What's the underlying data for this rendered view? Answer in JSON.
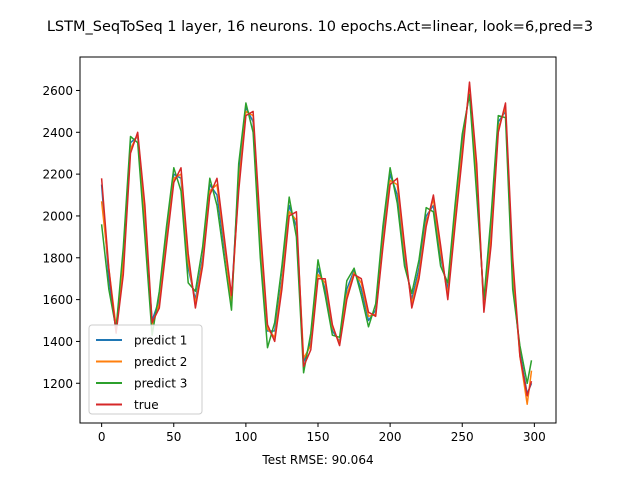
{
  "chart_data": {
    "type": "line",
    "title": "LSTM_SeqToSeq 1 layer, 16 neurons. 10 epochs.Act=linear, look=6,pred=3",
    "xlabel": "Test RMSE: 90.064",
    "ylabel": "",
    "xlim": [
      -15,
      315
    ],
    "ylim": [
      1010,
      2760
    ],
    "xticks": [
      0,
      50,
      100,
      150,
      200,
      250,
      300
    ],
    "yticks": [
      1200,
      1400,
      1600,
      1800,
      2000,
      2200,
      2400,
      2600
    ],
    "grid": false,
    "legend_position": "lower left",
    "series": [
      {
        "name": "predict 1",
        "color": "#1f77b4",
        "x": [
          0,
          5,
          10,
          15,
          20,
          25,
          30,
          35,
          40,
          45,
          50,
          55,
          60,
          65,
          70,
          75,
          80,
          85,
          90,
          95,
          100,
          105,
          110,
          115,
          120,
          125,
          130,
          135,
          140,
          145,
          150,
          155,
          160,
          165,
          170,
          175,
          180,
          185,
          190,
          195,
          200,
          205,
          210,
          215,
          220,
          225,
          230,
          235,
          240,
          245,
          250,
          255,
          260,
          265,
          270,
          275,
          280,
          285,
          290,
          295,
          298
        ],
        "y": [
          2150,
          1700,
          1450,
          1800,
          2350,
          2380,
          1950,
          1500,
          1600,
          1900,
          2200,
          2180,
          1750,
          1600,
          1800,
          2150,
          2100,
          1850,
          1600,
          2200,
          2520,
          2450,
          1850,
          1450,
          1450,
          1700,
          2050,
          1950,
          1300,
          1400,
          1750,
          1650,
          1450,
          1400,
          1650,
          1740,
          1650,
          1500,
          1550,
          1900,
          2200,
          2100,
          1800,
          1600,
          1750,
          2000,
          2050,
          1800,
          1650,
          2000,
          2350,
          2600,
          2150,
          1580,
          1950,
          2450,
          2500,
          1700,
          1350,
          1150,
          1200
        ]
      },
      {
        "name": "predict 2",
        "color": "#ff7f0e",
        "x": [
          0,
          5,
          10,
          15,
          20,
          25,
          30,
          35,
          40,
          45,
          50,
          55,
          60,
          65,
          70,
          75,
          80,
          85,
          90,
          95,
          100,
          105,
          110,
          115,
          120,
          125,
          130,
          135,
          140,
          145,
          150,
          155,
          160,
          165,
          170,
          175,
          180,
          185,
          190,
          195,
          200,
          205,
          210,
          215,
          220,
          225,
          230,
          235,
          240,
          245,
          250,
          255,
          260,
          265,
          270,
          275,
          280,
          285,
          290,
          295,
          298
        ],
        "y": [
          2070,
          1750,
          1470,
          1780,
          2320,
          2390,
          2000,
          1480,
          1580,
          1880,
          2180,
          2200,
          1780,
          1580,
          1780,
          2120,
          2150,
          1880,
          1580,
          2150,
          2500,
          2480,
          1900,
          1460,
          1420,
          1680,
          2020,
          1980,
          1320,
          1380,
          1720,
          1680,
          1470,
          1390,
          1620,
          1730,
          1680,
          1520,
          1530,
          1870,
          2170,
          2150,
          1830,
          1580,
          1720,
          1970,
          2080,
          1830,
          1620,
          1980,
          2310,
          2620,
          2200,
          1560,
          1900,
          2420,
          2520,
          1750,
          1330,
          1100,
          1260
        ]
      },
      {
        "name": "predict 3",
        "color": "#2ca02c",
        "x": [
          0,
          5,
          10,
          15,
          20,
          25,
          30,
          35,
          40,
          45,
          50,
          55,
          60,
          65,
          70,
          75,
          80,
          85,
          90,
          95,
          100,
          105,
          110,
          115,
          120,
          125,
          130,
          135,
          140,
          145,
          150,
          155,
          160,
          165,
          170,
          175,
          180,
          185,
          190,
          195,
          200,
          205,
          210,
          215,
          220,
          225,
          230,
          235,
          240,
          245,
          250,
          255,
          260,
          265,
          270,
          275,
          280,
          285,
          290,
          295,
          298
        ],
        "y": [
          1960,
          1650,
          1460,
          1850,
          2380,
          2350,
          1900,
          1430,
          1640,
          1950,
          2230,
          2120,
          1680,
          1640,
          1850,
          2180,
          2050,
          1800,
          1550,
          2250,
          2540,
          2400,
          1800,
          1370,
          1490,
          1760,
          2090,
          1900,
          1250,
          1440,
          1790,
          1620,
          1430,
          1420,
          1690,
          1750,
          1620,
          1470,
          1580,
          1950,
          2230,
          2060,
          1760,
          1630,
          1790,
          2040,
          2020,
          1760,
          1680,
          2050,
          2390,
          2580,
          2100,
          1600,
          2000,
          2480,
          2470,
          1650,
          1380,
          1200,
          1310
        ]
      },
      {
        "name": "true",
        "color": "#d62728",
        "x": [
          0,
          5,
          10,
          15,
          20,
          25,
          30,
          35,
          40,
          45,
          50,
          55,
          60,
          65,
          70,
          75,
          80,
          85,
          90,
          95,
          100,
          105,
          110,
          115,
          120,
          125,
          130,
          135,
          140,
          145,
          150,
          155,
          160,
          165,
          170,
          175,
          180,
          185,
          190,
          195,
          200,
          205,
          210,
          215,
          220,
          225,
          230,
          235,
          240,
          245,
          250,
          255,
          260,
          265,
          270,
          275,
          280,
          285,
          290,
          295,
          298
        ],
        "y": [
          2180,
          1750,
          1440,
          1720,
          2300,
          2400,
          2050,
          1490,
          1560,
          1860,
          2160,
          2230,
          1820,
          1560,
          1760,
          2100,
          2180,
          1900,
          1620,
          2120,
          2480,
          2500,
          1950,
          1480,
          1400,
          1650,
          2000,
          2020,
          1280,
          1360,
          1700,
          1700,
          1480,
          1380,
          1600,
          1720,
          1700,
          1540,
          1520,
          1850,
          2150,
          2180,
          1860,
          1560,
          1700,
          1950,
          2100,
          1860,
          1600,
          1950,
          2280,
          2640,
          2250,
          1540,
          1860,
          2400,
          2540,
          1800,
          1330,
          1140,
          1210
        ]
      }
    ]
  }
}
